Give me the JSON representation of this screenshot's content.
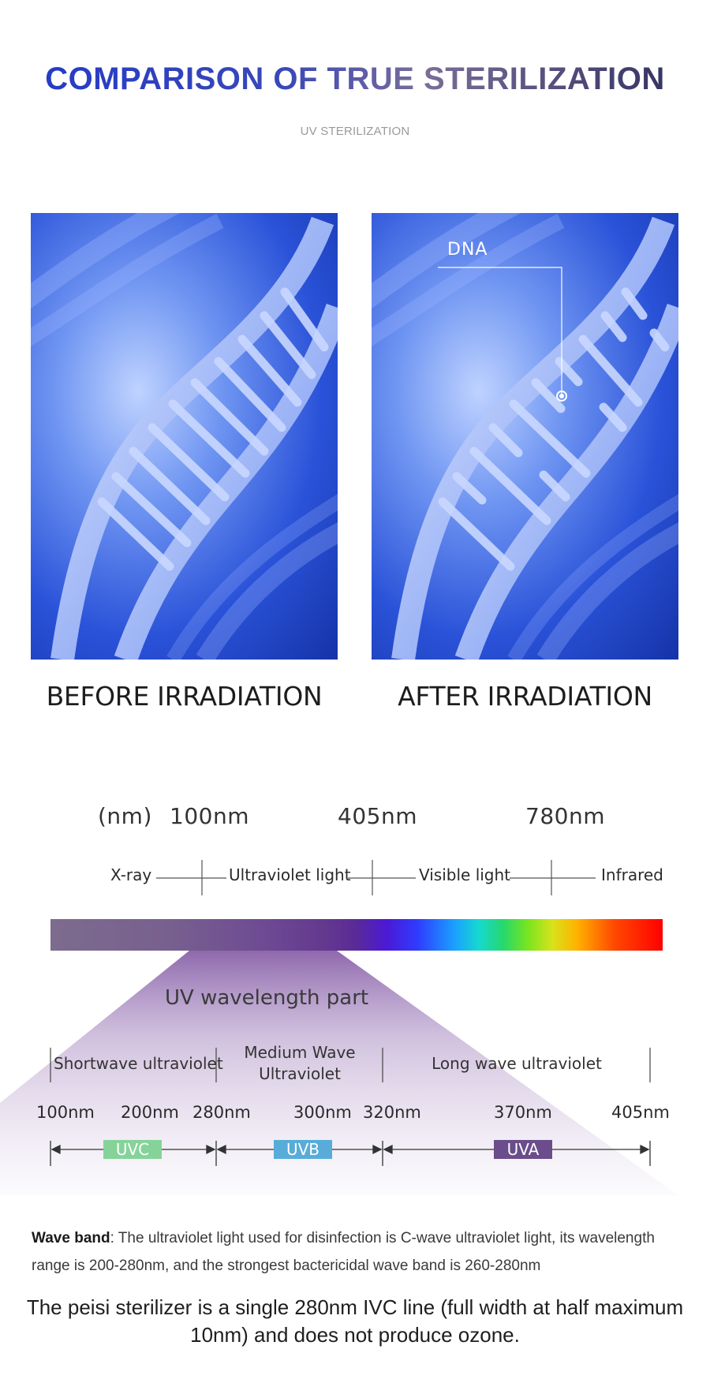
{
  "header": {
    "title": "COMPARISON OF TRUE STERILIZATION",
    "subtitle": "UV STERILIZATION"
  },
  "comparison": {
    "before_caption": "BEFORE IRRADIATION",
    "after_caption": "AFTER IRRADIATION",
    "dna_label": "DNA"
  },
  "spectrum": {
    "unit_label": "(nm)",
    "wavelengths": [
      "100nm",
      "405nm",
      "780nm"
    ],
    "bands": [
      "X-ray",
      "Ultraviolet light",
      "Visible light",
      "Infrared"
    ],
    "uv_title": "UV wavelength part",
    "sub_bands": {
      "short": "Shortwave ultraviolet",
      "medium_line1": "Medium Wave",
      "medium_line2": "Ultraviolet",
      "long": "Long wave ultraviolet"
    },
    "uv_wavelengths": [
      "100nm",
      "200nm",
      "280nm",
      "300nm",
      "320nm",
      "370nm",
      "405nm"
    ],
    "tags": {
      "uvc": "UVC",
      "uvb": "UVB",
      "uva": "UVA"
    },
    "colors": {
      "uvc": "#86d39a",
      "uvb": "#57acd9",
      "uva": "#6a4d8a"
    }
  },
  "footer": {
    "wave_band_label": "Wave band",
    "wave_band_text": ": The ultraviolet light used for disinfection is C-wave ultraviolet light, its wavelength range is 200-280nm, and the strongest bactericidal wave band is 260-280nm",
    "statement": "The peisi sterilizer is a single 280nm IVC line (full width at half maximum 10nm) and does not produce ozone."
  }
}
